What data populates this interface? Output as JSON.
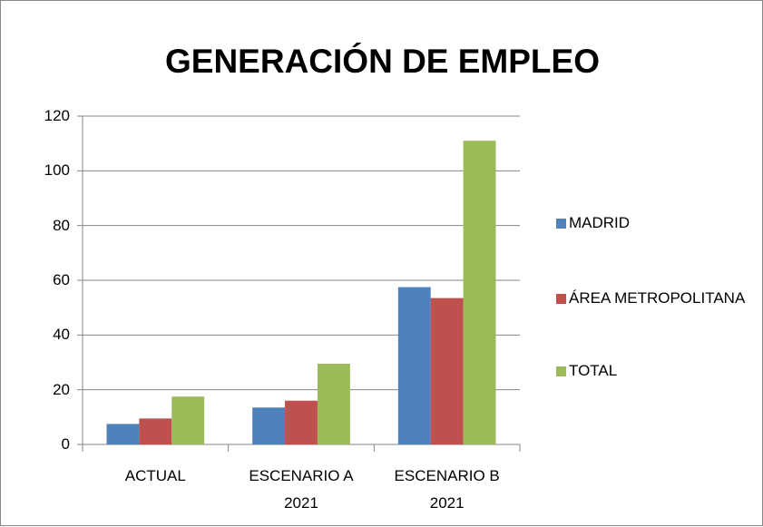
{
  "chart_data": {
    "type": "bar",
    "title": "GENERACIÓN DE EMPLEO",
    "categories": [
      "ACTUAL",
      "ESCENARIO A 2021",
      "ESCENARIO B 2021"
    ],
    "series": [
      {
        "name": "MADRID",
        "color": "#4f81bd",
        "values": [
          7.5,
          13.5,
          57.5
        ]
      },
      {
        "name": "ÁREA METROPOLITANA",
        "color": "#c0504d",
        "values": [
          9.5,
          16,
          53.5
        ]
      },
      {
        "name": "TOTAL",
        "color": "#9bbb59",
        "values": [
          17.5,
          29.5,
          111
        ]
      }
    ],
    "ylim": [
      0,
      120
    ],
    "yticks": [
      0,
      20,
      40,
      60,
      80,
      100,
      120
    ],
    "grid": true,
    "legend": "right"
  }
}
